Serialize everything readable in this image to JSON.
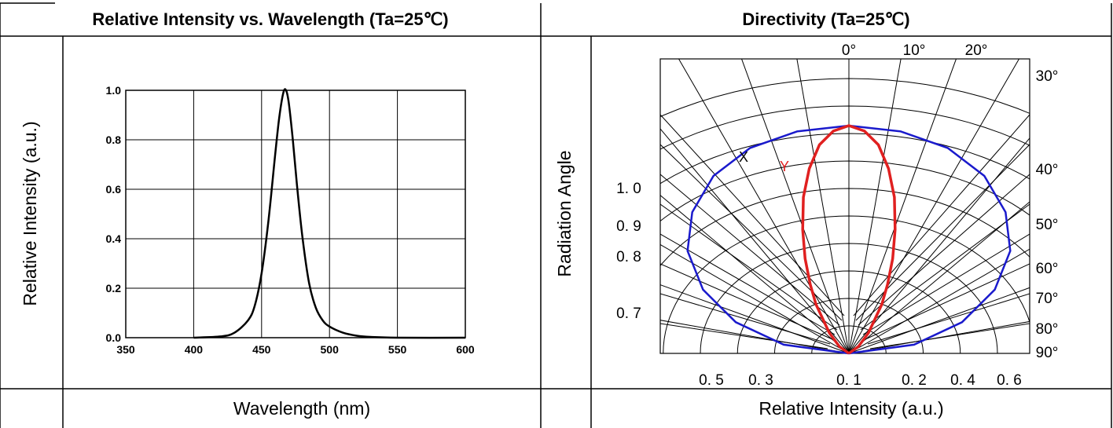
{
  "header": {
    "left_title": "Relative Intensity vs. Wavelength (Ta=25℃)",
    "right_title": "Directivity (Ta=25℃)"
  },
  "footer": {
    "left_xlabel": "Wavelength (nm)",
    "right_xlabel": "Relative Intensity (a.u.)"
  },
  "side": {
    "left_ylabel": "Relative Intensity (a.u.)",
    "right_ylabel": "Radiation Angle"
  },
  "colors": {
    "spectrum": "#000000",
    "x_series": "#1a1acc",
    "y_series": "#e02020",
    "grid": "#000000"
  },
  "chart_data": [
    {
      "type": "line",
      "title": "Relative Intensity vs. Wavelength (Ta=25℃)",
      "xlabel": "Wavelength (nm)",
      "ylabel": "Relative Intensity (a.u.)",
      "xlim": [
        350,
        600
      ],
      "ylim": [
        0,
        1.0
      ],
      "xticks": [
        "350",
        "400",
        "450",
        "500",
        "550",
        "600"
      ],
      "yticks": [
        "0.0",
        "0.2",
        "0.4",
        "0.6",
        "0.8",
        "1.0"
      ],
      "grid": true,
      "series": [
        {
          "x": [
            400,
            420,
            430,
            440,
            445,
            450,
            455,
            460,
            463,
            466,
            468,
            470,
            473,
            476,
            480,
            485,
            490,
            495,
            500,
            510,
            520,
            530,
            550,
            600
          ],
          "y": [
            0.0,
            0.005,
            0.02,
            0.07,
            0.13,
            0.26,
            0.47,
            0.74,
            0.89,
            0.99,
            1.0,
            0.95,
            0.8,
            0.62,
            0.41,
            0.22,
            0.12,
            0.07,
            0.045,
            0.02,
            0.008,
            0.003,
            0.0,
            0.0
          ]
        }
      ]
    },
    {
      "type": "line",
      "title": "Directivity (Ta=25℃)",
      "xlabel": "Relative Intensity (a.u.)",
      "ylabel": "Radiation Angle",
      "angle_labels": [
        "0°",
        "10°",
        "20°",
        "30°",
        "40°",
        "50°",
        "60°",
        "70°",
        "80°",
        "90°"
      ],
      "radial_labels": [
        "1. 0",
        "0. 9",
        "0. 8",
        "0. 7"
      ],
      "bottom_labels": [
        "0. 5",
        "0. 3",
        "0. 1",
        "0. 2",
        "0. 4",
        "0. 6"
      ],
      "grid": true,
      "series": [
        {
          "name": "X",
          "angles": [
            0,
            10,
            20,
            30,
            40,
            50,
            60,
            70,
            80,
            90
          ],
          "values": [
            1.0,
            0.99,
            0.96,
            0.9,
            0.81,
            0.7,
            0.56,
            0.4,
            0.22,
            0.0
          ]
        },
        {
          "name": "Y",
          "angles": [
            0,
            5,
            10,
            15,
            20,
            25,
            30,
            35,
            40,
            50,
            60,
            90
          ],
          "values": [
            1.0,
            0.98,
            0.93,
            0.84,
            0.73,
            0.6,
            0.48,
            0.37,
            0.28,
            0.14,
            0.06,
            0.0
          ]
        }
      ]
    }
  ]
}
